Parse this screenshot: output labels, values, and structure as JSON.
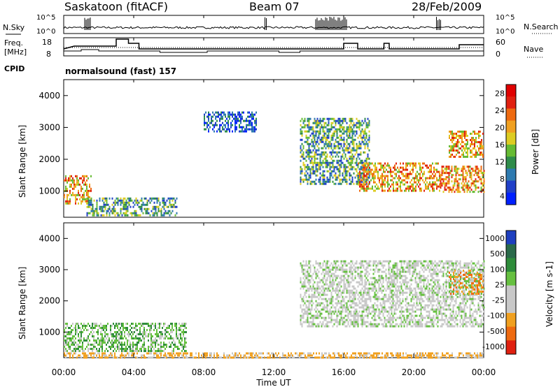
{
  "header": {
    "station": "Saskatoon (fitACF)",
    "beam": "Beam 07",
    "date": "28/Feb/2009"
  },
  "noise_panel": {
    "left_label": "N.Sky",
    "left_ticks": [
      "10^5",
      "10^0"
    ],
    "right_label": "N.Search",
    "right_ticks": [
      "10^5",
      "10^0"
    ]
  },
  "freq_panel": {
    "left_label_line1": "Freq.",
    "left_label_line2": "[MHz]",
    "left_ticks": [
      "18",
      "8"
    ],
    "right_label": "Nave",
    "right_ticks": [
      "60",
      "0"
    ]
  },
  "cpid": {
    "label": "CPID",
    "value": "normalsound (fast) 157"
  },
  "x_axis": {
    "label": "Time UT",
    "ticks": [
      "00:00",
      "04:00",
      "08:00",
      "12:00",
      "16:00",
      "20:00",
      "00:00"
    ]
  },
  "chart_data": [
    {
      "type": "heatmap",
      "title": "",
      "ylabel": "Slant Range [km]",
      "xlabel": "Time UT",
      "ylim": [
        180,
        4500
      ],
      "y_ticks": [
        "1000",
        "2000",
        "3000",
        "4000"
      ],
      "colorbar_label": "Power [dB]",
      "colorbar_ticks": [
        "4",
        "8",
        "12",
        "16",
        "20",
        "24",
        "28"
      ],
      "colorbar_colors": [
        "#0020ff",
        "#2040c8",
        "#2e7ab0",
        "#2f8c4a",
        "#66bb33",
        "#ddcc22",
        "#f0a020",
        "#ee6a10",
        "#e02010",
        "#e00000"
      ],
      "echo_regions": [
        {
          "t_start": 0.0,
          "t_end": 1.6,
          "range_low": 600,
          "range_high": 1500,
          "level": "high"
        },
        {
          "t_start": 1.3,
          "t_end": 6.5,
          "range_low": 250,
          "range_high": 800,
          "level": "medium"
        },
        {
          "t_start": 8.0,
          "t_end": 11.0,
          "range_low": 2900,
          "range_high": 3500,
          "level": "low"
        },
        {
          "t_start": 13.5,
          "t_end": 17.5,
          "range_low": 1200,
          "range_high": 3300,
          "level": "medium"
        },
        {
          "t_start": 16.8,
          "t_end": 21.5,
          "range_low": 1000,
          "range_high": 1900,
          "level": "high"
        },
        {
          "t_start": 21.5,
          "t_end": 24.0,
          "range_low": 1000,
          "range_high": 1800,
          "level": "high"
        },
        {
          "t_start": 22.0,
          "t_end": 24.0,
          "range_low": 2100,
          "range_high": 2900,
          "level": "high"
        }
      ]
    },
    {
      "type": "heatmap",
      "title": "",
      "ylabel": "Slant Range [km]",
      "xlabel": "Time UT",
      "ylim": [
        180,
        4500
      ],
      "y_ticks": [
        "1000",
        "2000",
        "3000",
        "4000"
      ],
      "colorbar_label": "Velocity [m s-1]",
      "colorbar_ticks": [
        "1000",
        "500",
        "100",
        "25",
        "-25",
        "-100",
        "-500",
        "-1000"
      ],
      "colorbar_colors": [
        "#1e3fbf",
        "#2a6a4a",
        "#2e8c3a",
        "#66c040",
        "#c8c8c8",
        "#c8c8c8",
        "#f0a020",
        "#ee6a10",
        "#e02010"
      ],
      "echo_regions": [
        {
          "t_start": 0.0,
          "t_end": 7.0,
          "range_low": 400,
          "range_high": 1300,
          "class": "+100"
        },
        {
          "t_start": 13.5,
          "t_end": 24.0,
          "range_low": 1200,
          "range_high": 3300,
          "class": "ground scatter"
        },
        {
          "t_start": 0.0,
          "t_end": 24.0,
          "range_low": 180,
          "range_high": 350,
          "class": "-100"
        },
        {
          "t_start": 22.0,
          "t_end": 24.0,
          "range_low": 2200,
          "range_high": 3000,
          "class": "-500"
        }
      ]
    }
  ]
}
